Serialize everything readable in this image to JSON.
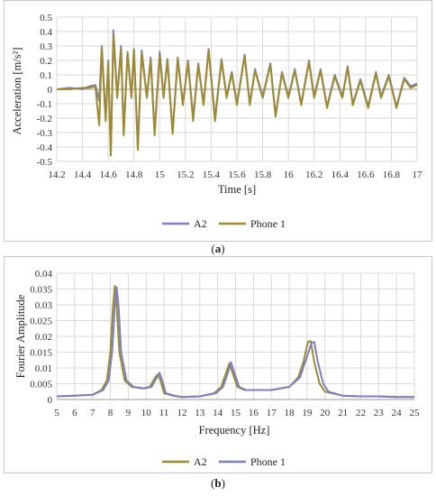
{
  "chart_data": [
    {
      "type": "line",
      "caption": {
        "open": "(",
        "letter": "a",
        "close": ")"
      },
      "xlabel": "Time [s]",
      "ylabel": "Acceleration [m/s²]",
      "xlim": [
        14.2,
        17
      ],
      "ylim": [
        -0.5,
        0.5
      ],
      "x_ticks": [
        "14.2",
        "14.4",
        "14.6",
        "14.8",
        "15",
        "15.2",
        "15.4",
        "15.6",
        "15.8",
        "16",
        "16.2",
        "16.4",
        "16.6",
        "16.8",
        "17"
      ],
      "y_ticks": [
        "0.5",
        "0.4",
        "0.3",
        "0.2",
        "0.1",
        "0",
        "-0.1",
        "-0.2",
        "-0.3",
        "-0.4",
        "-0.5"
      ],
      "grid": true,
      "legend_position": "bottom",
      "series": [
        {
          "name": "A2",
          "color": "#7b7fc4",
          "points": [
            [
              14.2,
              0.0
            ],
            [
              14.3,
              0.01
            ],
            [
              14.4,
              0.0
            ],
            [
              14.45,
              0.02
            ],
            [
              14.5,
              0.03
            ],
            [
              14.53,
              -0.08
            ],
            [
              14.55,
              0.3
            ],
            [
              14.58,
              -0.2
            ],
            [
              14.6,
              0.2
            ],
            [
              14.62,
              -0.45
            ],
            [
              14.64,
              0.41
            ],
            [
              14.67,
              -0.05
            ],
            [
              14.7,
              0.3
            ],
            [
              14.72,
              -0.3
            ],
            [
              14.75,
              0.26
            ],
            [
              14.78,
              -0.05
            ],
            [
              14.8,
              0.28
            ],
            [
              14.83,
              -0.4
            ],
            [
              14.86,
              0.27
            ],
            [
              14.9,
              -0.05
            ],
            [
              14.93,
              0.22
            ],
            [
              14.96,
              -0.3
            ],
            [
              15.0,
              0.26
            ],
            [
              15.03,
              -0.05
            ],
            [
              15.06,
              0.21
            ],
            [
              15.1,
              -0.3
            ],
            [
              15.14,
              0.22
            ],
            [
              15.18,
              -0.1
            ],
            [
              15.22,
              0.2
            ],
            [
              15.26,
              -0.2
            ],
            [
              15.3,
              0.18
            ],
            [
              15.34,
              -0.1
            ],
            [
              15.38,
              0.28
            ],
            [
              15.43,
              -0.2
            ],
            [
              15.48,
              0.21
            ],
            [
              15.52,
              -0.05
            ],
            [
              15.56,
              0.12
            ],
            [
              15.6,
              -0.1
            ],
            [
              15.66,
              0.24
            ],
            [
              15.7,
              -0.1
            ],
            [
              15.74,
              0.14
            ],
            [
              15.8,
              -0.05
            ],
            [
              15.86,
              0.18
            ],
            [
              15.9,
              -0.18
            ],
            [
              15.95,
              0.12
            ],
            [
              16.0,
              -0.05
            ],
            [
              16.05,
              0.14
            ],
            [
              16.1,
              -0.1
            ],
            [
              16.16,
              0.2
            ],
            [
              16.2,
              -0.05
            ],
            [
              16.25,
              0.14
            ],
            [
              16.3,
              -0.12
            ],
            [
              16.36,
              0.1
            ],
            [
              16.42,
              -0.05
            ],
            [
              16.46,
              0.16
            ],
            [
              16.5,
              -0.1
            ],
            [
              16.56,
              0.07
            ],
            [
              16.62,
              -0.12
            ],
            [
              16.68,
              0.12
            ],
            [
              16.72,
              -0.05
            ],
            [
              16.78,
              0.1
            ],
            [
              16.84,
              -0.12
            ],
            [
              16.9,
              0.08
            ],
            [
              16.95,
              0.02
            ],
            [
              17.0,
              0.04
            ]
          ]
        },
        {
          "name": "Phone 1",
          "color": "#a08a2e",
          "points": [
            [
              14.2,
              0.0
            ],
            [
              14.3,
              0.0
            ],
            [
              14.4,
              0.01
            ],
            [
              14.45,
              0.01
            ],
            [
              14.5,
              0.02
            ],
            [
              14.53,
              -0.25
            ],
            [
              14.55,
              0.28
            ],
            [
              14.58,
              -0.22
            ],
            [
              14.6,
              0.18
            ],
            [
              14.62,
              -0.46
            ],
            [
              14.64,
              0.38
            ],
            [
              14.67,
              -0.06
            ],
            [
              14.7,
              0.28
            ],
            [
              14.72,
              -0.32
            ],
            [
              14.75,
              0.25
            ],
            [
              14.78,
              -0.06
            ],
            [
              14.8,
              0.27
            ],
            [
              14.83,
              -0.42
            ],
            [
              14.86,
              0.25
            ],
            [
              14.9,
              -0.06
            ],
            [
              14.93,
              0.2
            ],
            [
              14.96,
              -0.32
            ],
            [
              15.0,
              0.24
            ],
            [
              15.03,
              -0.06
            ],
            [
              15.06,
              0.2
            ],
            [
              15.1,
              -0.31
            ],
            [
              15.14,
              0.21
            ],
            [
              15.18,
              -0.11
            ],
            [
              15.22,
              0.19
            ],
            [
              15.26,
              -0.22
            ],
            [
              15.3,
              0.17
            ],
            [
              15.34,
              -0.11
            ],
            [
              15.38,
              0.27
            ],
            [
              15.43,
              -0.22
            ],
            [
              15.48,
              0.2
            ],
            [
              15.52,
              -0.06
            ],
            [
              15.56,
              0.11
            ],
            [
              15.6,
              -0.11
            ],
            [
              15.66,
              0.23
            ],
            [
              15.7,
              -0.11
            ],
            [
              15.74,
              0.13
            ],
            [
              15.8,
              -0.06
            ],
            [
              15.86,
              0.17
            ],
            [
              15.9,
              -0.19
            ],
            [
              15.95,
              0.11
            ],
            [
              16.0,
              -0.06
            ],
            [
              16.05,
              0.13
            ],
            [
              16.1,
              -0.11
            ],
            [
              16.16,
              0.19
            ],
            [
              16.2,
              -0.06
            ],
            [
              16.25,
              0.13
            ],
            [
              16.3,
              -0.13
            ],
            [
              16.36,
              0.09
            ],
            [
              16.42,
              -0.06
            ],
            [
              16.46,
              0.15
            ],
            [
              16.5,
              -0.11
            ],
            [
              16.56,
              0.06
            ],
            [
              16.62,
              -0.13
            ],
            [
              16.68,
              0.11
            ],
            [
              16.72,
              -0.06
            ],
            [
              16.78,
              0.09
            ],
            [
              16.84,
              -0.13
            ],
            [
              16.9,
              0.07
            ],
            [
              16.95,
              0.01
            ],
            [
              17.0,
              0.03
            ]
          ]
        }
      ]
    },
    {
      "type": "line",
      "caption": {
        "open": "(",
        "letter": "b",
        "close": ")"
      },
      "xlabel": "Frequency [Hz]",
      "ylabel": "Fourier Amplitude",
      "xlim": [
        5,
        25
      ],
      "ylim": [
        0,
        0.04
      ],
      "x_ticks": [
        "5",
        "6",
        "7",
        "8",
        "9",
        "10",
        "11",
        "12",
        "13",
        "14",
        "15",
        "16",
        "17",
        "18",
        "19",
        "20",
        "21",
        "22",
        "23",
        "24",
        "25"
      ],
      "y_ticks": [
        "0.04",
        "0.035",
        "0.03",
        "0.025",
        "0.02",
        "0.015",
        "0.01",
        "0.005",
        "0"
      ],
      "grid": true,
      "legend_position": "bottom",
      "series": [
        {
          "name": "A2",
          "color": "#a08a2e",
          "points": [
            [
              5,
              0.001
            ],
            [
              6,
              0.0012
            ],
            [
              7,
              0.0015
            ],
            [
              7.5,
              0.003
            ],
            [
              7.8,
              0.006
            ],
            [
              8.0,
              0.015
            ],
            [
              8.15,
              0.03
            ],
            [
              8.25,
              0.036
            ],
            [
              8.35,
              0.03
            ],
            [
              8.5,
              0.015
            ],
            [
              8.8,
              0.006
            ],
            [
              9.2,
              0.004
            ],
            [
              9.8,
              0.0035
            ],
            [
              10.2,
              0.004
            ],
            [
              10.5,
              0.007
            ],
            [
              10.65,
              0.008
            ],
            [
              10.8,
              0.006
            ],
            [
              11.0,
              0.002
            ],
            [
              11.5,
              0.0012
            ],
            [
              12,
              0.0008
            ],
            [
              13,
              0.001
            ],
            [
              13.8,
              0.002
            ],
            [
              14.2,
              0.004
            ],
            [
              14.5,
              0.009
            ],
            [
              14.65,
              0.0115
            ],
            [
              14.8,
              0.009
            ],
            [
              15.1,
              0.004
            ],
            [
              15.5,
              0.003
            ],
            [
              16,
              0.003
            ],
            [
              17,
              0.003
            ],
            [
              18,
              0.004
            ],
            [
              18.5,
              0.007
            ],
            [
              18.8,
              0.012
            ],
            [
              19.05,
              0.0183
            ],
            [
              19.2,
              0.0185
            ],
            [
              19.4,
              0.012
            ],
            [
              19.7,
              0.005
            ],
            [
              20,
              0.0025
            ],
            [
              21,
              0.0012
            ],
            [
              22,
              0.001
            ],
            [
              23,
              0.001
            ],
            [
              24,
              0.0008
            ],
            [
              25,
              0.0008
            ]
          ]
        },
        {
          "name": "Phone 1",
          "color": "#7b7fc4",
          "points": [
            [
              5,
              0.001
            ],
            [
              6,
              0.0012
            ],
            [
              7,
              0.0015
            ],
            [
              7.6,
              0.003
            ],
            [
              7.9,
              0.006
            ],
            [
              8.1,
              0.015
            ],
            [
              8.25,
              0.03
            ],
            [
              8.35,
              0.0355
            ],
            [
              8.45,
              0.03
            ],
            [
              8.6,
              0.015
            ],
            [
              8.9,
              0.006
            ],
            [
              9.3,
              0.004
            ],
            [
              9.9,
              0.0035
            ],
            [
              10.3,
              0.004
            ],
            [
              10.6,
              0.007
            ],
            [
              10.75,
              0.0085
            ],
            [
              10.9,
              0.006
            ],
            [
              11.1,
              0.002
            ],
            [
              11.6,
              0.0012
            ],
            [
              12,
              0.0008
            ],
            [
              13,
              0.001
            ],
            [
              13.9,
              0.002
            ],
            [
              14.3,
              0.004
            ],
            [
              14.6,
              0.009
            ],
            [
              14.75,
              0.0118
            ],
            [
              14.9,
              0.009
            ],
            [
              15.2,
              0.004
            ],
            [
              15.6,
              0.003
            ],
            [
              16,
              0.003
            ],
            [
              17,
              0.003
            ],
            [
              18,
              0.004
            ],
            [
              18.6,
              0.007
            ],
            [
              18.9,
              0.012
            ],
            [
              19.25,
              0.018
            ],
            [
              19.4,
              0.0182
            ],
            [
              19.6,
              0.012
            ],
            [
              19.9,
              0.005
            ],
            [
              20.2,
              0.0025
            ],
            [
              21,
              0.0012
            ],
            [
              22,
              0.001
            ],
            [
              23,
              0.001
            ],
            [
              24,
              0.0008
            ],
            [
              25,
              0.0008
            ]
          ]
        }
      ]
    }
  ]
}
